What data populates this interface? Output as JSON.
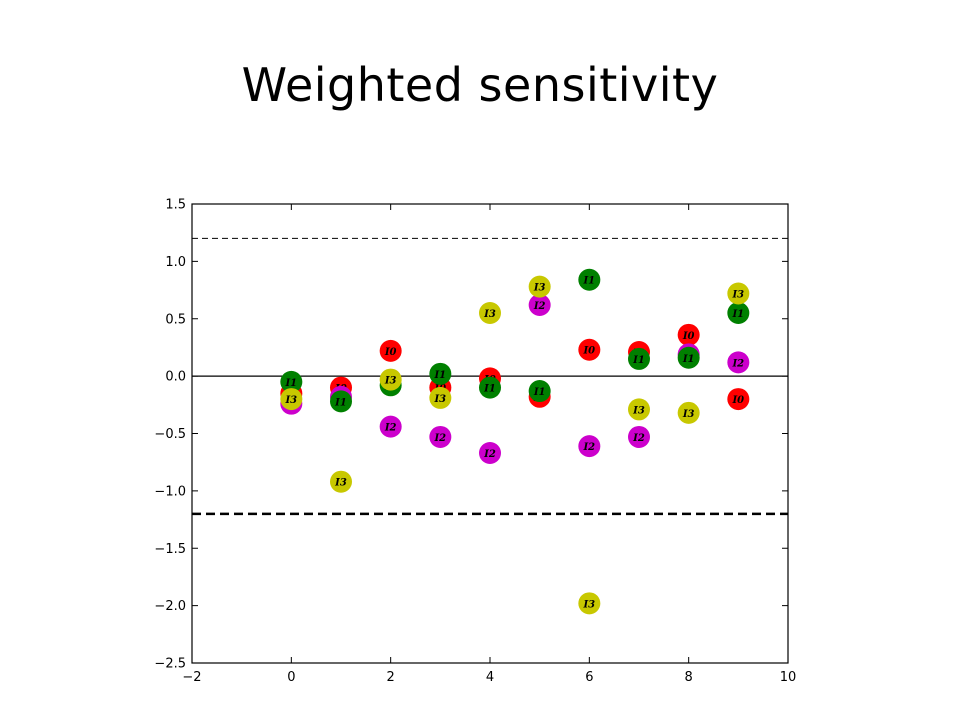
{
  "slide": {
    "title": "Weighted sensitivity"
  },
  "chart_data": {
    "type": "scatter",
    "title": "",
    "xlabel": "",
    "ylabel": "",
    "xlim": [
      -2,
      10
    ],
    "ylim": [
      -2.5,
      1.5
    ],
    "xticks": [
      -2,
      0,
      2,
      4,
      6,
      8,
      10
    ],
    "yticks": [
      1.5,
      1.0,
      0.5,
      0.0,
      -0.5,
      -1.0,
      -1.5,
      -2.0,
      -2.5
    ],
    "xtick_labels": [
      "−2",
      "0",
      "2",
      "4",
      "6",
      "8",
      "10"
    ],
    "ytick_labels": [
      "1.5",
      "1.0",
      "0.5",
      "0.0",
      "−0.5",
      "−1.0",
      "−1.5",
      "−2.0",
      "−2.5"
    ],
    "reference_lines": [
      {
        "y": 0.0,
        "style": "solid"
      },
      {
        "y": 1.2,
        "style": "dashed-thin"
      },
      {
        "y": -1.2,
        "style": "dashed-thick"
      }
    ],
    "series": [
      {
        "name": "I0",
        "color": "#ff0000",
        "points": [
          [
            0,
            -0.15
          ],
          [
            1,
            -0.1
          ],
          [
            2,
            0.22
          ],
          [
            3,
            -0.1
          ],
          [
            4,
            -0.02
          ],
          [
            5,
            -0.18
          ],
          [
            6,
            0.23
          ],
          [
            7,
            0.21
          ],
          [
            8,
            0.36
          ],
          [
            9,
            -0.2
          ]
        ]
      },
      {
        "name": "I2",
        "color": "#cc00cc",
        "points": [
          [
            0,
            -0.24
          ],
          [
            1,
            -0.18
          ],
          [
            2,
            -0.44
          ],
          [
            3,
            -0.53
          ],
          [
            4,
            -0.67
          ],
          [
            5,
            0.62
          ],
          [
            6,
            -0.61
          ],
          [
            7,
            -0.53
          ],
          [
            8,
            0.19
          ],
          [
            9,
            0.12
          ]
        ]
      },
      {
        "name": "I1",
        "color": "#008000",
        "points": [
          [
            0,
            -0.05
          ],
          [
            1,
            -0.22
          ],
          [
            2,
            -0.08
          ],
          [
            3,
            0.02
          ],
          [
            4,
            -0.1
          ],
          [
            5,
            -0.13
          ],
          [
            6,
            0.84
          ],
          [
            7,
            0.15
          ],
          [
            8,
            0.16
          ],
          [
            9,
            0.55
          ]
        ]
      },
      {
        "name": "I3",
        "color": "#c8c800",
        "points": [
          [
            0,
            -0.2
          ],
          [
            1,
            -0.92
          ],
          [
            2,
            -0.03
          ],
          [
            3,
            -0.19
          ],
          [
            4,
            0.55
          ],
          [
            5,
            0.78
          ],
          [
            6,
            -1.98
          ],
          [
            7,
            -0.29
          ],
          [
            8,
            -0.32
          ],
          [
            9,
            0.72
          ]
        ]
      }
    ]
  }
}
